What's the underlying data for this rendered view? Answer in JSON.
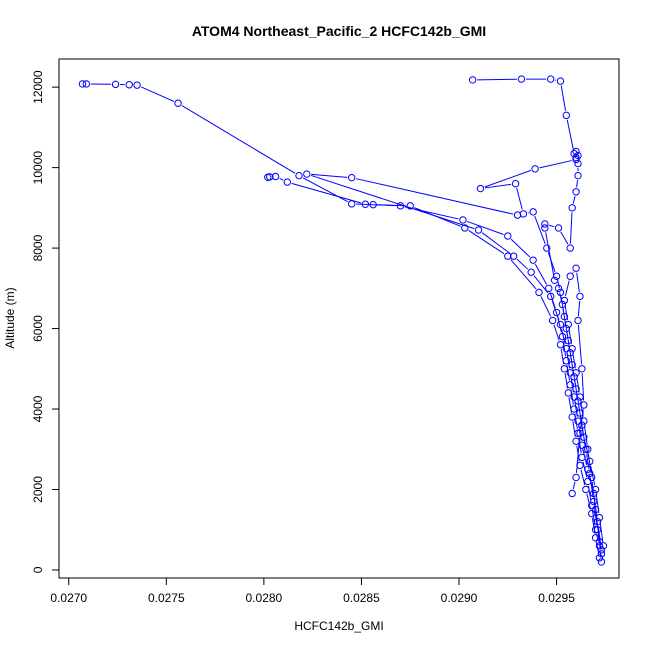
{
  "chart_data": {
    "type": "line",
    "title": "ATOM4 Northeast_Pacific_2 HCFC142b_GMI",
    "xlabel": "HCFC142b_GMI",
    "ylabel": "Altitude (m)",
    "xlim": [
      0.02695,
      0.02982
    ],
    "ylim": [
      -200,
      12700
    ],
    "x_ticks": [
      0.027,
      0.0275,
      0.028,
      0.0285,
      0.029,
      0.0295
    ],
    "x_tick_labels": [
      "0.0270",
      "0.0275",
      "0.0280",
      "0.0285",
      "0.0290",
      "0.0295"
    ],
    "y_ticks": [
      0,
      2000,
      4000,
      6000,
      8000,
      10000,
      12000
    ],
    "y_tick_labels": [
      "0",
      "2000",
      "4000",
      "6000",
      "8000",
      "10000",
      "12000"
    ],
    "markers": "open-circle",
    "grid": false,
    "color": "#0000ff",
    "series": [
      {
        "x": [
          0.02973,
          0.02972,
          0.0297,
          0.02968,
          0.02966,
          0.02963,
          0.02961,
          0.02959,
          0.02957,
          0.02955,
          0.02953,
          0.0295,
          0.02946,
          0.02938,
          0.02925,
          0.02902,
          0.0287,
          0.02845,
          0.02818,
          0.02756,
          0.02735,
          0.02731,
          0.02724,
          0.02709,
          0.02707
        ],
        "y": [
          200,
          600,
          1000,
          1600,
          2200,
          2800,
          3400,
          4000,
          4600,
          5200,
          5800,
          6400,
          7000,
          7700,
          8300,
          8700,
          9050,
          9100,
          9800,
          11600,
          12050,
          12060,
          12070,
          12080,
          12080
        ]
      },
      {
        "x": [
          0.02972,
          0.0297,
          0.02968,
          0.02965,
          0.02962,
          0.0296,
          0.02958,
          0.02956,
          0.02954,
          0.02952,
          0.02948,
          0.02941,
          0.02925,
          0.02903,
          0.02875,
          0.02856,
          0.02852,
          0.02812,
          0.02806,
          0.02802,
          0.02803
        ],
        "y": [
          300,
          800,
          1400,
          2000,
          2600,
          3200,
          3800,
          4400,
          5000,
          5600,
          6200,
          6900,
          7800,
          8500,
          9050,
          9080,
          9090,
          9640,
          9780,
          9760,
          9770
        ]
      },
      {
        "x": [
          0.02973,
          0.02971,
          0.02969,
          0.02966,
          0.02963,
          0.02961,
          0.02959,
          0.02957,
          0.02955,
          0.02952,
          0.02947,
          0.02937,
          0.02928,
          0.0291,
          0.02822,
          0.02845,
          0.0293
        ],
        "y": [
          500,
          1200,
          1900,
          2500,
          3100,
          3700,
          4300,
          4900,
          5500,
          6100,
          6800,
          7400,
          7800,
          8450,
          9840,
          9750,
          8820
        ]
      },
      {
        "x": [
          0.02974,
          0.02972,
          0.0297,
          0.02967,
          0.02964,
          0.02962,
          0.0296,
          0.02958,
          0.02956,
          0.02954,
          0.02952,
          0.0295,
          0.02945,
          0.02938,
          0.02933,
          0.02929,
          0.02911,
          0.02939,
          0.0296,
          0.02961,
          0.0296,
          0.02959,
          0.02955,
          0.02952,
          0.02947,
          0.02932,
          0.02907
        ],
        "y": [
          600,
          1300,
          2000,
          2700,
          3300,
          3900,
          4500,
          5100,
          5700,
          6300,
          6900,
          7300,
          8000,
          8900,
          8850,
          9600,
          9480,
          9970,
          10200,
          10300,
          10400,
          10350,
          11300,
          12150,
          12200,
          12200,
          12180
        ]
      },
      {
        "x": [
          0.02973,
          0.02971,
          0.02969,
          0.02967,
          0.02965,
          0.02963,
          0.02961,
          0.02959,
          0.02957,
          0.02955,
          0.02953,
          0.02951,
          0.02949,
          0.02944,
          0.02944,
          0.02951,
          0.02957,
          0.02958,
          0.0296,
          0.02961,
          0.02961,
          0.0296
        ],
        "y": [
          400,
          1000,
          1700,
          2400,
          3000,
          3600,
          4200,
          4800,
          5400,
          6000,
          6600,
          7000,
          7200,
          8500,
          8600,
          8500,
          8000,
          9000,
          9400,
          9800,
          10100,
          10250
        ]
      },
      {
        "x": [
          0.02972,
          0.0297,
          0.02968,
          0.02966,
          0.02964,
          0.02962,
          0.0296,
          0.02958,
          0.02956,
          0.02954,
          0.02957,
          0.0296,
          0.02962,
          0.02961,
          0.02963,
          0.02964,
          0.02962,
          0.0296,
          0.02958
        ],
        "y": [
          700,
          1500,
          2300,
          3000,
          3700,
          4300,
          4900,
          5500,
          6100,
          6700,
          7300,
          7500,
          6800,
          6200,
          5000,
          4100,
          3400,
          2300,
          1900
        ]
      }
    ]
  }
}
